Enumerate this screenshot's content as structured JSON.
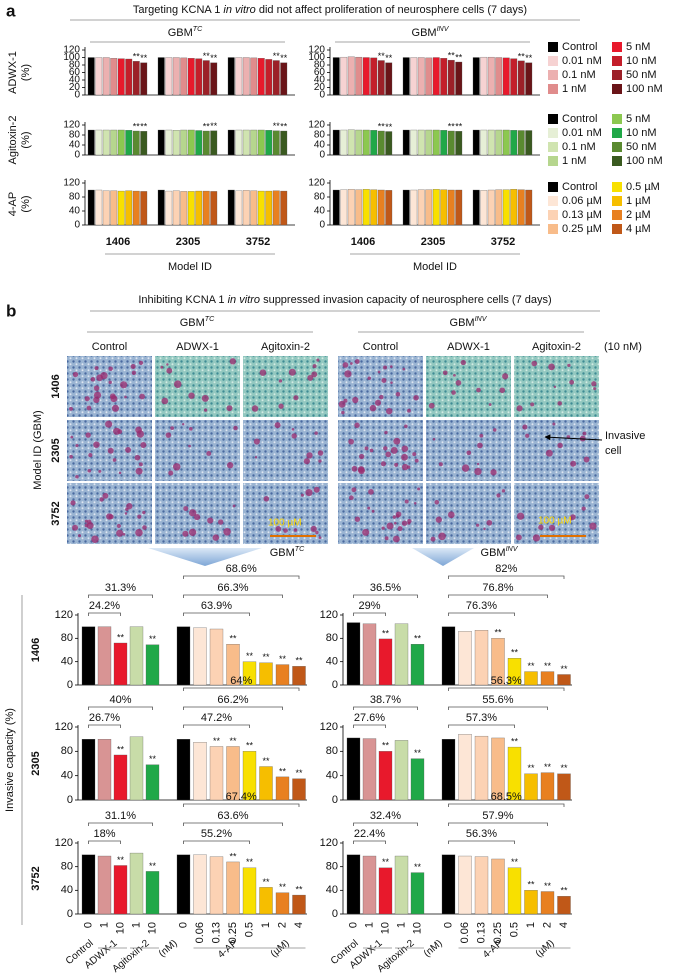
{
  "panel_a": {
    "label": "a",
    "title": {
      "pre": "Targeting KCNA 1 ",
      "em": "in vitro",
      "post": " did not affect proliferation of neurosphere cells (7 days)"
    },
    "cohorts": [
      {
        "name": "GBM",
        "sup": "TC"
      },
      {
        "name": "GBM",
        "sup": "INV"
      }
    ],
    "groups": [
      "1406",
      "2305",
      "3752"
    ],
    "xlabel": "Model ID",
    "rows": [
      {
        "type": "bar",
        "ylabel": "ADWX-1",
        "yunit": "(%)",
        "ylim": [
          0,
          120
        ],
        "yticks": [
          0,
          20,
          40,
          60,
          80,
          100,
          120
        ],
        "legend": [
          {
            "name": "Control",
            "color": "#000000"
          },
          {
            "name": "0.01 nM",
            "color": "#f6d2d2"
          },
          {
            "name": "0.1 nM",
            "color": "#ecb0b0"
          },
          {
            "name": "1 nM",
            "color": "#e08c8c"
          },
          {
            "name": "5 nM",
            "color": "#e8192c"
          },
          {
            "name": "10 nM",
            "color": "#c41e2a"
          },
          {
            "name": "50 nM",
            "color": "#9c2028"
          },
          {
            "name": "100 nM",
            "color": "#6a1418"
          }
        ],
        "charts": [
          {
            "values": [
              [
                100,
                100,
                100,
                98,
                97,
                96,
                90,
                86
              ],
              [
                100,
                100,
                100,
                99,
                98,
                97,
                92,
                86
              ],
              [
                100,
                100,
                100,
                99,
                98,
                95,
                92,
                86
              ]
            ],
            "sig": [
              [
                null,
                null,
                null,
                null,
                null,
                null,
                "**",
                "**"
              ],
              [
                null,
                null,
                null,
                null,
                null,
                null,
                "**",
                "**"
              ],
              [
                null,
                null,
                null,
                null,
                null,
                null,
                "**",
                "**"
              ]
            ]
          },
          {
            "values": [
              [
                100,
                101,
                102,
                101,
                100,
                99,
                92,
                86
              ],
              [
                100,
                100,
                100,
                99,
                100,
                98,
                93,
                88
              ],
              [
                100,
                101,
                101,
                100,
                99,
                97,
                91,
                86
              ]
            ],
            "sig": [
              [
                null,
                null,
                null,
                null,
                null,
                null,
                "**",
                "**"
              ],
              [
                null,
                null,
                null,
                null,
                null,
                null,
                "**",
                "**"
              ],
              [
                null,
                null,
                null,
                null,
                null,
                null,
                "**",
                "**"
              ]
            ]
          }
        ]
      },
      {
        "type": "bar",
        "ylabel": "Agitoxin-2",
        "yunit": "(%)",
        "ylim": [
          0,
          120
        ],
        "yticks": [
          0,
          40,
          80,
          120
        ],
        "legend": [
          {
            "name": "Control",
            "color": "#000000"
          },
          {
            "name": "0.01 nM",
            "color": "#e6efd6"
          },
          {
            "name": "0.1 nM",
            "color": "#d0e4b0"
          },
          {
            "name": "1 nM",
            "color": "#b6d68e"
          },
          {
            "name": "5 nM",
            "color": "#8cc850"
          },
          {
            "name": "10 nM",
            "color": "#20a848"
          },
          {
            "name": "50 nM",
            "color": "#5a8a30"
          },
          {
            "name": "100 nM",
            "color": "#3a5a20"
          }
        ],
        "charts": [
          {
            "values": [
              [
                100,
                100,
                100,
                100,
                100,
                99,
                96,
                95
              ],
              [
                100,
                100,
                99,
                100,
                100,
                98,
                96,
                97
              ],
              [
                100,
                100,
                100,
                100,
                100,
                99,
                97,
                96
              ]
            ],
            "sig": [
              [
                null,
                null,
                null,
                null,
                null,
                null,
                "**",
                "**"
              ],
              [
                null,
                null,
                null,
                null,
                null,
                null,
                "**",
                "**"
              ],
              [
                null,
                null,
                null,
                null,
                null,
                null,
                "**",
                "**"
              ]
            ]
          },
          {
            "values": [
              [
                100,
                100,
                101,
                100,
                100,
                99,
                96,
                94
              ],
              [
                100,
                100,
                100,
                100,
                100,
                99,
                96,
                95
              ],
              [
                100,
                100,
                100,
                100,
                100,
                99,
                98,
                98
              ]
            ],
            "sig": [
              [
                null,
                null,
                null,
                null,
                null,
                null,
                "**",
                "**"
              ],
              [
                null,
                null,
                null,
                null,
                null,
                null,
                "**",
                "**"
              ],
              [
                null,
                null,
                null,
                null,
                null,
                null,
                null,
                null
              ]
            ]
          }
        ]
      },
      {
        "type": "bar",
        "ylabel": "4-AP",
        "yunit": "(%)",
        "ylim": [
          0,
          120
        ],
        "yticks": [
          0,
          40,
          80,
          120
        ],
        "legend": [
          {
            "name": "Control",
            "color": "#000000"
          },
          {
            "name": "0.06 µM",
            "color": "#fde6d6"
          },
          {
            "name": "0.13 µM",
            "color": "#fcd2b4"
          },
          {
            "name": "0.25 µM",
            "color": "#f8bc8a"
          },
          {
            "name": "0.5 µM",
            "color": "#f8e000"
          },
          {
            "name": "1 µM",
            "color": "#f6be00"
          },
          {
            "name": "2 µM",
            "color": "#e88020"
          },
          {
            "name": "4 µM",
            "color": "#c05818"
          }
        ],
        "charts": [
          {
            "values": [
              [
                100,
                100,
                98,
                98,
                97,
                98,
                97,
                96
              ],
              [
                100,
                97,
                98,
                96,
                96,
                97,
                97,
                96
              ],
              [
                100,
                98,
                99,
                98,
                97,
                97,
                98,
                97
              ]
            ],
            "sig": [
              [
                null,
                null,
                null,
                null,
                null,
                null,
                null,
                null
              ],
              [
                null,
                null,
                null,
                null,
                null,
                null,
                null,
                null
              ],
              [
                null,
                null,
                null,
                null,
                null,
                null,
                null,
                null
              ]
            ]
          },
          {
            "values": [
              [
                100,
                101,
                102,
                101,
                102,
                101,
                100,
                99
              ],
              [
                100,
                100,
                101,
                101,
                102,
                101,
                100,
                100
              ],
              [
                100,
                99,
                100,
                101,
                101,
                102,
                101,
                100
              ]
            ],
            "sig": [
              [
                null,
                null,
                null,
                null,
                null,
                null,
                null,
                null
              ],
              [
                null,
                null,
                null,
                null,
                null,
                null,
                null,
                null
              ],
              [
                null,
                null,
                null,
                null,
                null,
                null,
                null,
                null
              ]
            ]
          }
        ]
      }
    ]
  },
  "panel_b": {
    "label": "b",
    "title": {
      "pre": "Inhibiting KCNA 1 ",
      "em": "in vitro",
      "post": " suppressed invasion capacity of neurosphere cells (7 days)"
    },
    "cohorts": [
      {
        "name": "GBM",
        "sup": "TC"
      },
      {
        "name": "GBM",
        "sup": "INV"
      }
    ],
    "images": {
      "columns": [
        "Control",
        "ADWX-1",
        "Agitoxin-2"
      ],
      "dose": "(10 nM)",
      "rows": [
        "1406",
        "2305",
        "3752"
      ],
      "ylabel": "Model ID (GBM)",
      "annotation": [
        "Invasive",
        "cell"
      ],
      "scale": "100 µM"
    },
    "chart": {
      "type": "bar",
      "ylabel": "Invasive capacity (%)",
      "ylim": [
        0,
        120
      ],
      "yticks": [
        0,
        40,
        80,
        120
      ],
      "colors": [
        "#000000",
        "#d89494",
        "#e8192c",
        "#c8dca8",
        "#20a848",
        "#000000",
        "#fde6d6",
        "#fcd2b4",
        "#f8bc8a",
        "#f8e000",
        "#f6be00",
        "#e88020",
        "#c05818"
      ],
      "categories": [
        "0",
        "1",
        "10",
        "1",
        "10",
        "0",
        "0.06",
        "0.13",
        "0.25",
        "0.5",
        "1",
        "2",
        "4"
      ],
      "xgroups": [
        "Control",
        "ADWX-1",
        "Agitoxin-2",
        "(nM)",
        "4-AP",
        "(µM)"
      ],
      "rows": [
        "1406",
        "2305",
        "3752"
      ],
      "charts": [
        [
          {
            "values": [
              100,
              100,
              72,
              100,
              69,
              100,
              98,
              96,
              70,
              40,
              38,
              35,
              32
            ],
            "sig": [
              null,
              null,
              "**",
              null,
              "**",
              null,
              null,
              null,
              "**",
              "**",
              "**",
              "**",
              "**"
            ],
            "brackets": [
              "24.2%",
              "31.3%",
              "63.9%",
              "66.3%",
              "68.6%"
            ]
          },
          {
            "values": [
              107,
              105,
              79,
              105,
              70,
              100,
              92,
              94,
              80,
              46,
              23,
              23,
              18
            ],
            "sig": [
              null,
              null,
              "**",
              null,
              "**",
              null,
              null,
              null,
              "**",
              "**",
              "**",
              "**",
              "**"
            ],
            "brackets": [
              "29%",
              "36.5%",
              "76.3%",
              "76.8%",
              "82%"
            ]
          }
        ],
        [
          {
            "values": [
              100,
              100,
              74,
              104,
              58,
              100,
              95,
              88,
              88,
              80,
              55,
              38,
              35
            ],
            "sig": [
              null,
              null,
              "**",
              null,
              "**",
              null,
              null,
              "**",
              "**",
              "**",
              "**",
              "**",
              "**"
            ],
            "brackets": [
              "26.7%",
              "40%",
              "47.2%",
              "66.2%",
              "64%"
            ]
          },
          {
            "values": [
              102,
              101,
              80,
              98,
              68,
              100,
              108,
              105,
              102,
              87,
              43,
              45,
              43
            ],
            "sig": [
              null,
              null,
              "**",
              null,
              "**",
              null,
              null,
              null,
              null,
              "**",
              "**",
              "**",
              "**"
            ],
            "brackets": [
              "27.6%",
              "38.7%",
              "57.3%",
              "55.6%",
              "56.3%"
            ]
          }
        ],
        [
          {
            "values": [
              100,
              98,
              82,
              103,
              72,
              100,
              100,
              97,
              88,
              78,
              45,
              36,
              32
            ],
            "sig": [
              null,
              null,
              "**",
              null,
              "**",
              null,
              null,
              null,
              "**",
              "**",
              "**",
              "**",
              "**"
            ],
            "brackets": [
              "18%",
              "31.1%",
              "55.2%",
              "63.6%",
              "67.4%"
            ]
          },
          {
            "values": [
              100,
              98,
              78,
              98,
              70,
              100,
              98,
              97,
              93,
              78,
              40,
              38,
              30
            ],
            "sig": [
              null,
              null,
              "**",
              null,
              "**",
              null,
              null,
              null,
              null,
              "**",
              "**",
              "**",
              "**"
            ],
            "brackets": [
              "22.4%",
              "32.4%",
              "56.3%",
              "57.9%",
              "68.5%"
            ]
          }
        ]
      ]
    }
  }
}
